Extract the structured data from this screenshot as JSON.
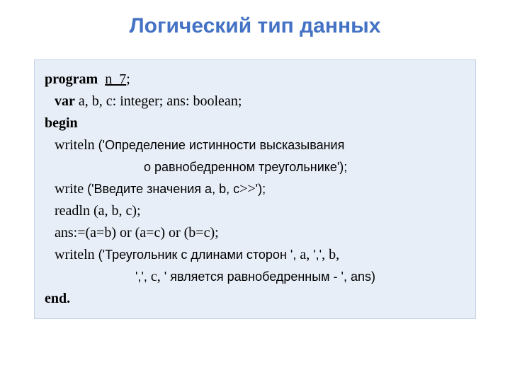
{
  "slide": {
    "title": "Логический тип данных",
    "title_color": "#4472c4",
    "title_fontsize": 30,
    "code_bg": "#e8eef7",
    "code_border": "#c5d4e8",
    "code_fontsize": 20,
    "lines": {
      "l1_kw": "program",
      "l1_name": "n_7",
      "l1_semi": ";",
      "l2_kw": "var",
      "l2_rest": " a, b, c: integer; ans: boolean;",
      "l3_kw": "begin",
      "l4_pre": "writeln ",
      "l4_str": "('Определение истинности высказывания",
      "l5_str": "о равнобедренном треугольнике');",
      "l6_pre": "write ",
      "l6_str1": "('Введите значения a, b, c",
      "l6_mid": ">>",
      "l6_str2": "');",
      "l7": "readln (a, b, c);",
      "l8": "ans:=(a=b) or (a=c) or (b=c);",
      "l9_pre": "writeln ",
      "l9_str1": "('Треугольник с длинами сторон ', ",
      "l9_mid": "a, ",
      "l9_str2": "','",
      "l9_mid2": ", b,",
      "l10_str1": "',', ",
      "l10_mid": "c, ",
      "l10_str2": "' является равнобедренным - '",
      "l10_end": ", ans)",
      "l11_kw": "end."
    }
  }
}
